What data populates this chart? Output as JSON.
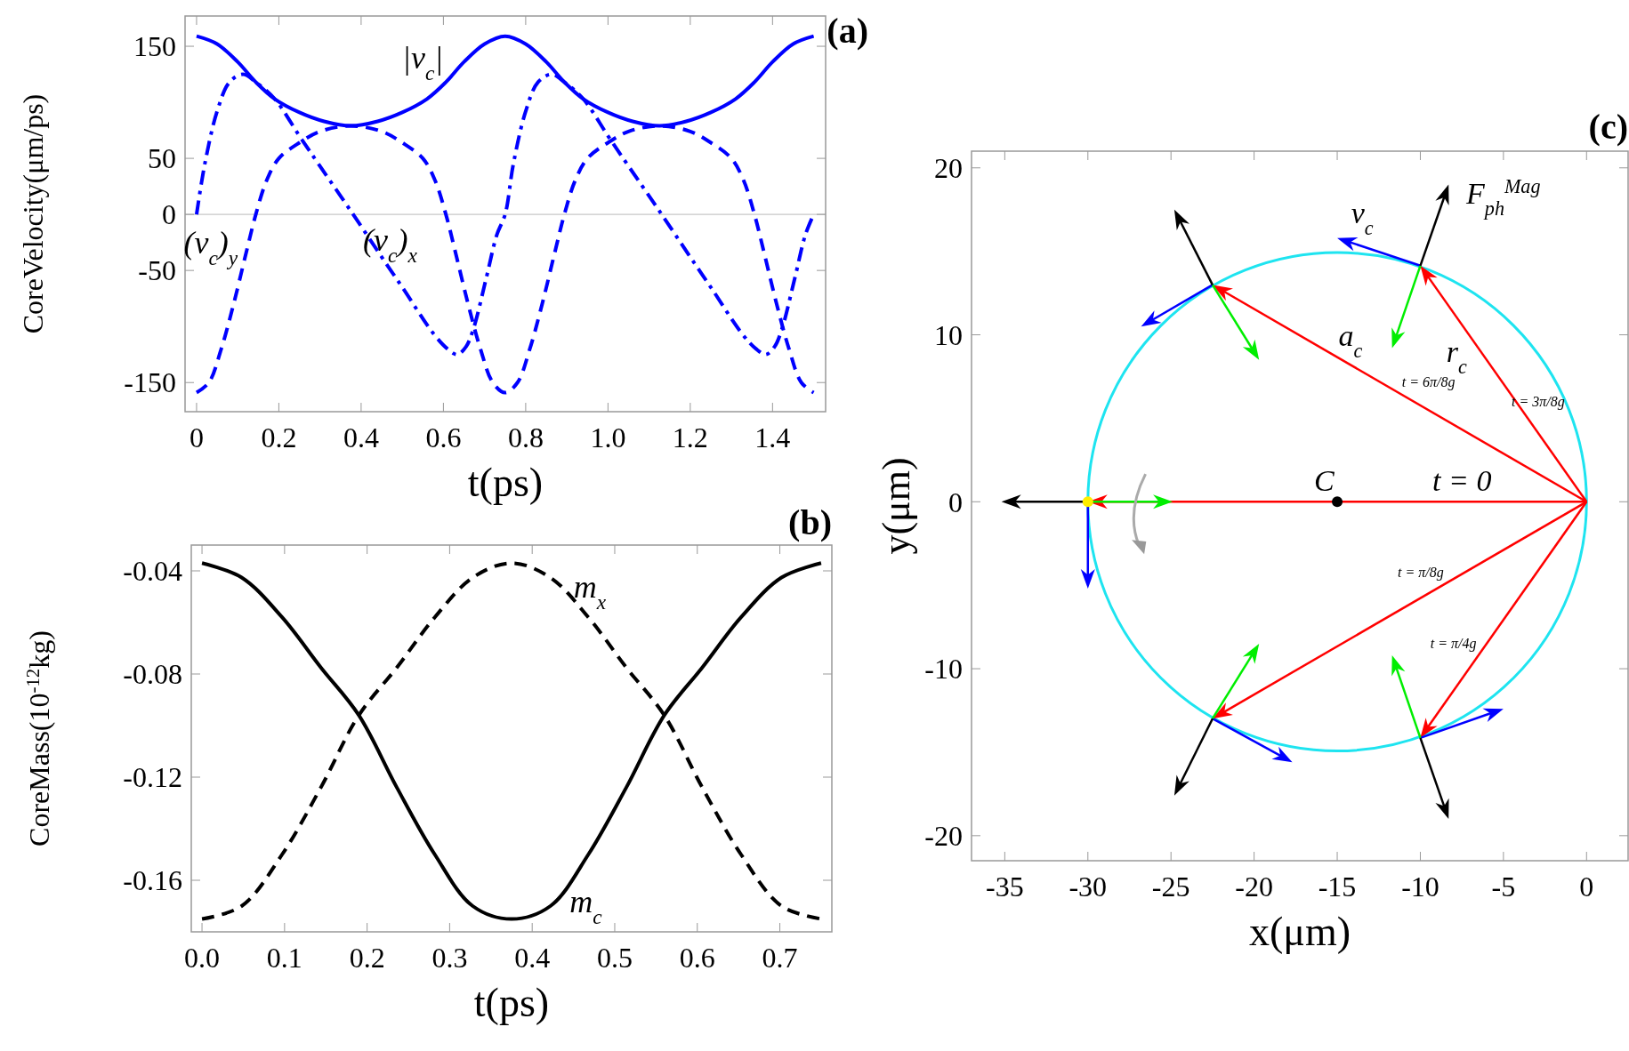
{
  "chart_data": [
    {
      "type": "line",
      "title": "(a)",
      "xlabel": "t(ps)",
      "ylabel": "CoreVelocity(μm/ps)",
      "xlim": [
        -0.028,
        1.529
      ],
      "ylim": [
        -176,
        177
      ],
      "xticks": [
        0,
        0.2,
        0.4,
        0.6,
        0.8,
        {
          "value": 1,
          "label": "1.0"
        },
        1.2,
        1.4
      ],
      "yticks": [
        -150,
        -50,
        0,
        50,
        150
      ],
      "ref_lines": [
        {
          "axis": "y",
          "value": 0,
          "color": "#c8c8c8"
        }
      ],
      "series": [
        {
          "color": "#0000ff",
          "line_style": "solid",
          "x": [
            0,
            0.05,
            0.1,
            0.144,
            0.19,
            0.25,
            0.31,
            0.375,
            0.44,
            0.5,
            0.56,
            0.606,
            0.65,
            0.7,
            0.75,
            0.8,
            0.85,
            0.894,
            0.94,
            1.0,
            1.06,
            1.125,
            1.19,
            1.25,
            1.31,
            1.356,
            1.4,
            1.45,
            1.5
          ],
          "values": [
            159,
            152,
            136,
            118,
            103,
            91,
            83,
            79,
            83,
            91,
            103,
            118,
            136,
            152,
            159,
            152,
            136,
            118,
            103,
            91,
            83,
            79,
            83,
            91,
            103,
            118,
            136,
            152,
            159
          ]
        },
        {
          "color": "#0000ff",
          "line_style": "dashdot",
          "x": [
            0,
            0.02,
            0.05,
            0.08,
            0.113,
            0.144,
            0.19,
            0.25,
            0.3,
            0.375,
            0.45,
            0.5,
            0.575,
            0.61,
            0.634,
            0.655,
            0.673,
            0.704,
            0.73,
            0.75,
            0.77,
            0.8,
            0.83,
            0.863,
            0.894,
            0.94,
            1.0,
            1.05,
            1.125,
            1.2,
            1.25,
            1.325,
            1.36,
            1.384,
            1.405,
            1.423,
            1.454,
            1.48,
            1.5
          ],
          "values": [
            0,
            45,
            92,
            118,
            125,
            118,
            103,
            70,
            43,
            3,
            -38,
            -65,
            -106,
            -120,
            -125,
            -118,
            -102,
            -57,
            -18,
            0,
            45,
            92,
            118,
            125,
            118,
            103,
            70,
            43,
            3,
            -38,
            -65,
            -106,
            -120,
            -125,
            -118,
            -102,
            -57,
            -18,
            0
          ]
        },
        {
          "color": "#0000ff",
          "line_style": "dashed",
          "x": [
            0,
            0.03,
            0.06,
            0.09,
            0.12,
            0.144,
            0.17,
            0.2,
            0.25,
            0.3,
            0.375,
            0.45,
            0.5,
            0.55,
            0.58,
            0.606,
            0.63,
            0.66,
            0.69,
            0.72,
            0.75,
            0.78,
            0.81,
            0.84,
            0.87,
            0.894,
            0.92,
            0.95,
            1.0,
            1.05,
            1.125,
            1.2,
            1.25,
            1.3,
            1.33,
            1.356,
            1.38,
            1.41,
            1.44,
            1.47,
            1.5
          ],
          "values": [
            -159,
            -150,
            -120,
            -80,
            -35,
            0,
            30,
            50,
            64,
            74,
            79,
            74,
            64,
            50,
            30,
            0,
            -35,
            -80,
            -120,
            -150,
            -159,
            -150,
            -120,
            -80,
            -35,
            0,
            30,
            50,
            64,
            74,
            79,
            74,
            64,
            50,
            30,
            0,
            -35,
            -80,
            -120,
            -150,
            -159
          ]
        }
      ],
      "annotations": [
        "|v$_{c}$|",
        "(v$_{c}$)$_{x}$",
        "(v$_{c}$)$_{y}$"
      ]
    },
    {
      "type": "line",
      "title": "(b)",
      "xlabel": "t(ps)",
      "ylabel": "CoreMass(10$^{-12}$kg)",
      "xlim": [
        -0.013,
        0.763
      ],
      "ylim": [
        -0.18,
        -0.03
      ],
      "xticks": [
        {
          "value": 0,
          "label": "0.0"
        },
        0.1,
        0.2,
        0.3,
        0.4,
        0.5,
        0.6,
        0.7
      ],
      "yticks": [
        -0.04,
        -0.08,
        -0.12,
        -0.16
      ],
      "x": [
        0,
        0.048,
        0.097,
        0.144,
        0.19,
        0.236,
        0.282,
        0.328,
        0.375,
        0.422,
        0.468,
        0.514,
        0.56,
        0.606,
        0.653,
        0.702,
        0.75
      ],
      "series": [
        {
          "color": "#000000",
          "line_style": "solid",
          "values": [
            -0.037,
            -0.0426,
            -0.058,
            -0.0775,
            -0.096,
            -0.124,
            -0.15,
            -0.17,
            -0.175,
            -0.17,
            -0.15,
            -0.124,
            -0.096,
            -0.0775,
            -0.058,
            -0.0426,
            -0.037
          ]
        },
        {
          "color": "#000000",
          "line_style": "dashed",
          "values": [
            -0.175,
            -0.17,
            -0.15,
            -0.124,
            -0.096,
            -0.0775,
            -0.058,
            -0.0426,
            -0.037,
            -0.0426,
            -0.058,
            -0.0775,
            -0.096,
            -0.124,
            -0.15,
            -0.17,
            -0.175
          ]
        }
      ],
      "annotations": [
        "m$_{x}$",
        "m$_{c}$"
      ]
    },
    {
      "type": "scatter",
      "title": "(c)",
      "xlabel": "x(μm)",
      "ylabel": "y(μm)",
      "xlim": [
        -37,
        2.5
      ],
      "ylim": [
        -21.5,
        21
      ],
      "xticks": [
        -35,
        -30,
        -25,
        -20,
        -15,
        -10,
        -5,
        0
      ],
      "yticks": [
        -20,
        -10,
        0,
        10,
        20
      ],
      "series": [
        {
          "color": "#000000",
          "marker": "circle",
          "x": [
            -15
          ],
          "values": [
            0
          ]
        },
        {
          "color": "#ffee00",
          "marker": "circle",
          "x": [
            -30
          ],
          "values": [
            0
          ]
        }
      ],
      "annotations": [
        "C",
        "t = 0",
        "t = 6π/8g",
        "t = 3π/8g",
        "t = π/8g",
        "t = π/4g",
        "v$_{c}$",
        "a$_{c}$",
        "r$_{c}$",
        "F$_{ph}$$^{Mag}$"
      ]
    }
  ]
}
